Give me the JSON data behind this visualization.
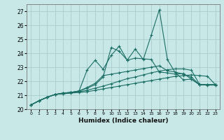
{
  "xlabel": "Humidex (Indice chaleur)",
  "x": [
    0,
    1,
    2,
    3,
    4,
    5,
    6,
    7,
    8,
    9,
    10,
    11,
    12,
    13,
    14,
    15,
    16,
    17,
    18,
    19,
    20,
    21,
    22,
    23
  ],
  "lines": [
    [
      20.3,
      20.6,
      20.85,
      21.05,
      21.1,
      21.15,
      21.2,
      21.25,
      21.35,
      21.45,
      21.55,
      21.65,
      21.75,
      21.85,
      21.95,
      22.05,
      22.15,
      22.25,
      22.35,
      22.4,
      22.45,
      22.4,
      22.35,
      21.75
    ],
    [
      20.3,
      20.6,
      20.85,
      21.05,
      21.12,
      21.18,
      21.25,
      21.35,
      21.5,
      21.65,
      21.82,
      22.0,
      22.18,
      22.3,
      22.45,
      22.6,
      22.72,
      22.82,
      22.88,
      22.88,
      22.78,
      21.78,
      21.72,
      21.72
    ],
    [
      20.3,
      20.6,
      20.85,
      21.05,
      21.15,
      21.2,
      21.3,
      21.55,
      21.85,
      22.4,
      22.5,
      22.6,
      22.7,
      22.8,
      22.9,
      23.0,
      23.1,
      22.75,
      22.65,
      22.5,
      22.3,
      21.75,
      21.75,
      21.75
    ],
    [
      20.3,
      20.6,
      20.85,
      21.05,
      21.15,
      21.2,
      21.3,
      22.8,
      23.5,
      22.85,
      23.85,
      24.5,
      23.5,
      23.65,
      23.6,
      23.55,
      22.65,
      22.6,
      22.5,
      22.55,
      22.15,
      21.75,
      21.75,
      21.75
    ],
    [
      20.3,
      20.6,
      20.85,
      21.05,
      21.15,
      21.2,
      21.3,
      21.5,
      21.75,
      22.3,
      24.4,
      24.15,
      23.5,
      24.3,
      23.55,
      25.3,
      27.1,
      23.55,
      22.6,
      22.1,
      22.15,
      21.75,
      21.75,
      21.75
    ]
  ],
  "bg_color": "#c8e8e8",
  "grid_color": "#a8cccc",
  "line_color": "#1a6e64",
  "ylim": [
    20,
    27.5
  ],
  "yticks": [
    20,
    21,
    22,
    23,
    24,
    25,
    26,
    27
  ],
  "xlim": [
    -0.5,
    23.5
  ],
  "figw": 3.2,
  "figh": 2.0,
  "dpi": 100
}
